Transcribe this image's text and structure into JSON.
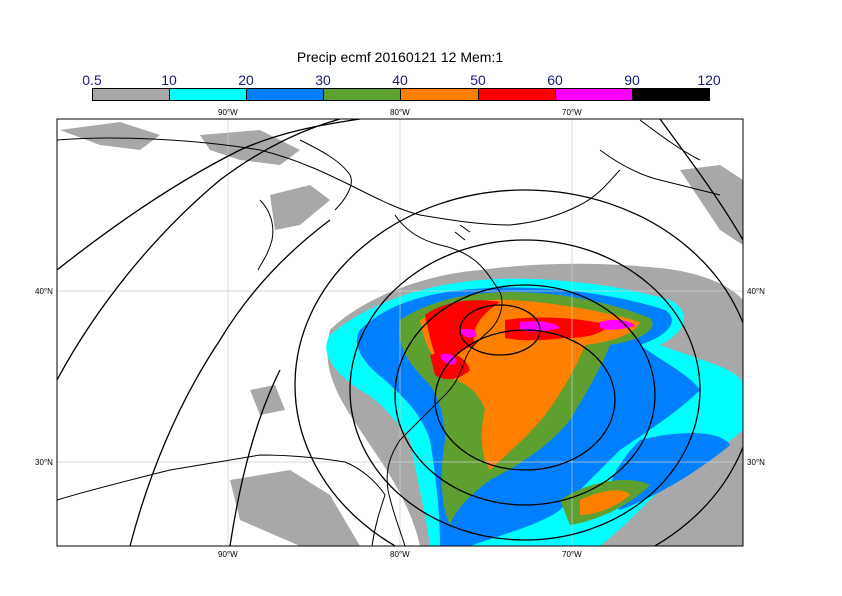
{
  "title": "Precip ecmf 20160121 12 Mem:1",
  "colorbar": {
    "levels": [
      "0.5",
      "10",
      "20",
      "30",
      "40",
      "50",
      "60",
      "90",
      "120"
    ],
    "colors": [
      "#a8a8a8",
      "#00ffff",
      "#0080ff",
      "#5ea030",
      "#ff8000",
      "#ff0000",
      "#ff00ff",
      "#000000"
    ]
  },
  "axes": {
    "top_lon": [
      "90°W",
      "80°W",
      "70°W"
    ],
    "bottom_lon": [
      "90°W",
      "80°W",
      "70°W"
    ],
    "left_lat": [
      "40°N",
      "30°N"
    ],
    "right_lat": [
      "40°N",
      "30°N"
    ]
  },
  "colors": {
    "grey": "#a8a8a8",
    "cyan": "#00ffff",
    "blue": "#0080ff",
    "green": "#5ea030",
    "orange": "#ff8000",
    "red": "#ff0000",
    "magenta": "#ff00ff",
    "line": "#000000",
    "grid": "#cccccc"
  }
}
